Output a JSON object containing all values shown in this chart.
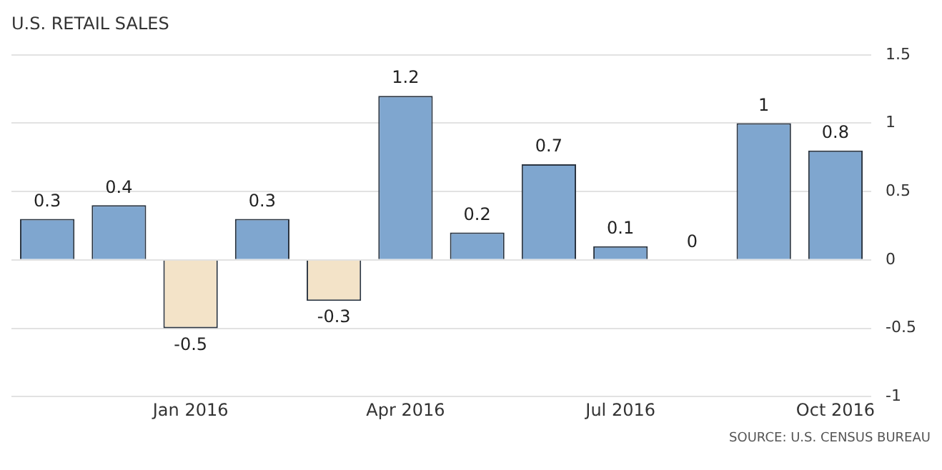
{
  "chart_data": {
    "type": "bar",
    "title": "U.S. RETAIL SALES",
    "categories": [
      null,
      null,
      "Jan 2016",
      null,
      null,
      "Apr 2016",
      null,
      null,
      "Jul 2016",
      null,
      null,
      "Oct 2016"
    ],
    "values": [
      0.3,
      0.4,
      -0.5,
      0.3,
      -0.3,
      1.2,
      0.2,
      0.7,
      0.1,
      0,
      1,
      0.8
    ],
    "colors": [
      "#7fa6cf",
      "#7fa6cf",
      "#f3e3c8",
      "#7fa6cf",
      "#f3e3c8",
      "#7fa6cf",
      "#7fa6cf",
      "#7fa6cf",
      "#7fa6cf",
      "#7fa6cf",
      "#7fa6cf",
      "#7fa6cf"
    ],
    "ylim": [
      -1,
      1.5
    ],
    "yticks": [
      -1,
      -0.5,
      0,
      0.5,
      1,
      1.5
    ],
    "grid": "y",
    "data_labels": true,
    "annotations": [
      "SOURCE: U.S. CENSUS BUREAU"
    ]
  }
}
